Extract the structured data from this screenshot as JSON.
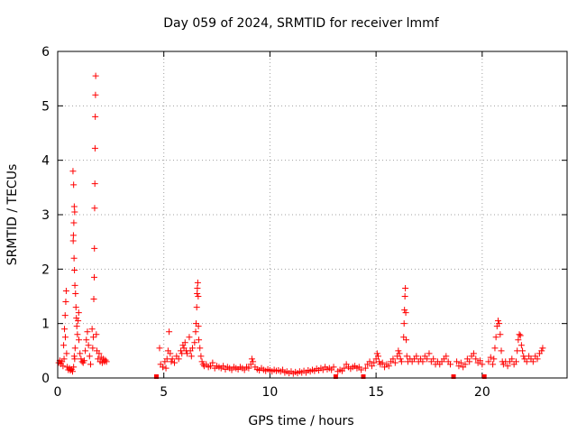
{
  "chart_data": {
    "type": "scatter",
    "title": "Day 059 of 2024, SRMTID for receiver lmmf",
    "xlabel": "GPS time / hours",
    "ylabel": "SRMTID / TECUs",
    "xlim": [
      0,
      24
    ],
    "ylim": [
      0,
      6
    ],
    "xticks": [
      0,
      5,
      10,
      15,
      20
    ],
    "yticks": [
      0,
      1,
      2,
      3,
      4,
      5,
      6
    ],
    "grid": true,
    "marker": "+",
    "color": "#ff0000",
    "gap_markers": [
      4.65,
      13.1,
      14.4,
      18.65,
      20.1
    ],
    "series": [
      {
        "name": "SRMTID",
        "points": [
          [
            0.05,
            0.28
          ],
          [
            0.1,
            0.32
          ],
          [
            0.15,
            0.26
          ],
          [
            0.2,
            0.3
          ],
          [
            0.25,
            0.22
          ],
          [
            0.3,
            0.35
          ],
          [
            0.28,
            0.6
          ],
          [
            0.32,
            0.9
          ],
          [
            0.35,
            1.15
          ],
          [
            0.38,
            1.4
          ],
          [
            0.4,
            1.6
          ],
          [
            0.36,
            0.75
          ],
          [
            0.42,
            0.45
          ],
          [
            0.45,
            0.2
          ],
          [
            0.5,
            0.15
          ],
          [
            0.55,
            0.18
          ],
          [
            0.6,
            0.14
          ],
          [
            0.65,
            0.16
          ],
          [
            0.7,
            0.12
          ],
          [
            0.75,
            0.2
          ],
          [
            0.78,
            0.4
          ],
          [
            0.8,
            0.35
          ],
          [
            0.82,
            0.55
          ],
          [
            0.72,
            3.8
          ],
          [
            0.75,
            3.55
          ],
          [
            0.78,
            3.15
          ],
          [
            0.8,
            3.05
          ],
          [
            0.76,
            2.85
          ],
          [
            0.74,
            2.62
          ],
          [
            0.73,
            2.52
          ],
          [
            0.77,
            2.2
          ],
          [
            0.79,
            1.98
          ],
          [
            0.81,
            1.7
          ],
          [
            0.84,
            1.55
          ],
          [
            0.86,
            1.3
          ],
          [
            0.88,
            1.1
          ],
          [
            0.9,
            0.95
          ],
          [
            0.93,
            0.8
          ],
          [
            0.96,
            1.05
          ],
          [
            0.99,
            1.2
          ],
          [
            1.0,
            0.7
          ],
          [
            1.05,
            0.45
          ],
          [
            1.1,
            0.35
          ],
          [
            1.15,
            0.3
          ],
          [
            1.2,
            0.28
          ],
          [
            1.25,
            0.32
          ],
          [
            1.3,
            0.5
          ],
          [
            1.35,
            0.7
          ],
          [
            1.4,
            0.85
          ],
          [
            1.45,
            0.6
          ],
          [
            1.5,
            0.4
          ],
          [
            1.55,
            0.25
          ],
          [
            1.62,
            0.9
          ],
          [
            1.65,
            0.55
          ],
          [
            1.68,
            0.75
          ],
          [
            1.7,
            1.45
          ],
          [
            1.72,
            1.85
          ],
          [
            1.73,
            2.38
          ],
          [
            1.74,
            3.12
          ],
          [
            1.75,
            3.57
          ],
          [
            1.76,
            4.22
          ],
          [
            1.77,
            4.8
          ],
          [
            1.78,
            5.2
          ],
          [
            1.79,
            5.55
          ],
          [
            1.82,
            0.8
          ],
          [
            1.85,
            0.5
          ],
          [
            1.9,
            0.35
          ],
          [
            1.95,
            0.45
          ],
          [
            2.0,
            0.3
          ],
          [
            2.05,
            0.38
          ],
          [
            2.1,
            0.28
          ],
          [
            2.15,
            0.35
          ],
          [
            2.2,
            0.3
          ],
          [
            2.25,
            0.33
          ],
          [
            2.3,
            0.3
          ],
          [
            4.8,
            0.55
          ],
          [
            4.85,
            0.25
          ],
          [
            4.95,
            0.2
          ],
          [
            5.05,
            0.3
          ],
          [
            5.1,
            0.18
          ],
          [
            5.15,
            0.35
          ],
          [
            5.2,
            0.5
          ],
          [
            5.25,
            0.85
          ],
          [
            5.3,
            0.45
          ],
          [
            5.35,
            0.3
          ],
          [
            5.4,
            0.35
          ],
          [
            5.5,
            0.28
          ],
          [
            5.6,
            0.4
          ],
          [
            5.7,
            0.35
          ],
          [
            5.8,
            0.5
          ],
          [
            5.85,
            0.45
          ],
          [
            5.9,
            0.6
          ],
          [
            5.95,
            0.55
          ],
          [
            6.0,
            0.65
          ],
          [
            6.05,
            0.5
          ],
          [
            6.1,
            0.45
          ],
          [
            6.2,
            0.75
          ],
          [
            6.25,
            0.5
          ],
          [
            6.3,
            0.4
          ],
          [
            6.35,
            0.55
          ],
          [
            6.45,
            0.65
          ],
          [
            6.5,
            0.85
          ],
          [
            6.52,
            1.0
          ],
          [
            6.55,
            1.3
          ],
          [
            6.57,
            1.55
          ],
          [
            6.58,
            1.65
          ],
          [
            6.6,
            1.75
          ],
          [
            6.62,
            1.5
          ],
          [
            6.63,
            0.95
          ],
          [
            6.65,
            0.7
          ],
          [
            6.7,
            0.55
          ],
          [
            6.75,
            0.4
          ],
          [
            6.8,
            0.3
          ],
          [
            6.85,
            0.25
          ],
          [
            6.9,
            0.22
          ],
          [
            7.0,
            0.25
          ],
          [
            7.1,
            0.2
          ],
          [
            7.2,
            0.22
          ],
          [
            7.3,
            0.28
          ],
          [
            7.4,
            0.18
          ],
          [
            7.5,
            0.22
          ],
          [
            7.6,
            0.2
          ],
          [
            7.7,
            0.18
          ],
          [
            7.8,
            0.22
          ],
          [
            7.9,
            0.16
          ],
          [
            8.0,
            0.2
          ],
          [
            8.1,
            0.18
          ],
          [
            8.2,
            0.15
          ],
          [
            8.3,
            0.2
          ],
          [
            8.4,
            0.18
          ],
          [
            8.5,
            0.16
          ],
          [
            8.6,
            0.2
          ],
          [
            8.7,
            0.18
          ],
          [
            8.8,
            0.15
          ],
          [
            8.9,
            0.2
          ],
          [
            9.0,
            0.18
          ],
          [
            9.1,
            0.25
          ],
          [
            9.15,
            0.35
          ],
          [
            9.2,
            0.3
          ],
          [
            9.3,
            0.2
          ],
          [
            9.4,
            0.16
          ],
          [
            9.5,
            0.14
          ],
          [
            9.6,
            0.18
          ],
          [
            9.7,
            0.15
          ],
          [
            9.8,
            0.13
          ],
          [
            9.9,
            0.16
          ],
          [
            10.0,
            0.14
          ],
          [
            10.1,
            0.12
          ],
          [
            10.2,
            0.15
          ],
          [
            10.3,
            0.13
          ],
          [
            10.4,
            0.14
          ],
          [
            10.5,
            0.12
          ],
          [
            10.6,
            0.15
          ],
          [
            10.7,
            0.1
          ],
          [
            10.8,
            0.12
          ],
          [
            10.9,
            0.09
          ],
          [
            11.0,
            0.12
          ],
          [
            11.1,
            0.08
          ],
          [
            11.2,
            0.11
          ],
          [
            11.3,
            0.09
          ],
          [
            11.4,
            0.12
          ],
          [
            11.5,
            0.1
          ],
          [
            11.6,
            0.13
          ],
          [
            11.7,
            0.1
          ],
          [
            11.8,
            0.14
          ],
          [
            11.9,
            0.12
          ],
          [
            12.0,
            0.15
          ],
          [
            12.1,
            0.13
          ],
          [
            12.2,
            0.17
          ],
          [
            12.3,
            0.14
          ],
          [
            12.4,
            0.18
          ],
          [
            12.5,
            0.15
          ],
          [
            12.6,
            0.2
          ],
          [
            12.7,
            0.16
          ],
          [
            12.8,
            0.18
          ],
          [
            12.9,
            0.15
          ],
          [
            13.0,
            0.2
          ],
          [
            13.2,
            0.12
          ],
          [
            13.3,
            0.15
          ],
          [
            13.4,
            0.13
          ],
          [
            13.5,
            0.18
          ],
          [
            13.6,
            0.25
          ],
          [
            13.7,
            0.2
          ],
          [
            13.8,
            0.17
          ],
          [
            13.9,
            0.2
          ],
          [
            14.0,
            0.22
          ],
          [
            14.1,
            0.18
          ],
          [
            14.2,
            0.2
          ],
          [
            14.3,
            0.15
          ],
          [
            14.5,
            0.18
          ],
          [
            14.6,
            0.25
          ],
          [
            14.7,
            0.3
          ],
          [
            14.8,
            0.22
          ],
          [
            14.9,
            0.28
          ],
          [
            15.0,
            0.35
          ],
          [
            15.05,
            0.45
          ],
          [
            15.1,
            0.4
          ],
          [
            15.15,
            0.3
          ],
          [
            15.2,
            0.25
          ],
          [
            15.3,
            0.28
          ],
          [
            15.4,
            0.2
          ],
          [
            15.5,
            0.25
          ],
          [
            15.6,
            0.22
          ],
          [
            15.7,
            0.3
          ],
          [
            15.8,
            0.35
          ],
          [
            15.9,
            0.28
          ],
          [
            16.0,
            0.4
          ],
          [
            16.05,
            0.5
          ],
          [
            16.1,
            0.45
          ],
          [
            16.15,
            0.35
          ],
          [
            16.2,
            0.3
          ],
          [
            16.3,
            0.75
          ],
          [
            16.32,
            1.0
          ],
          [
            16.34,
            1.25
          ],
          [
            16.36,
            1.5
          ],
          [
            16.38,
            1.65
          ],
          [
            16.4,
            1.2
          ],
          [
            16.42,
            0.7
          ],
          [
            16.45,
            0.4
          ],
          [
            16.5,
            0.3
          ],
          [
            16.6,
            0.35
          ],
          [
            16.7,
            0.3
          ],
          [
            16.8,
            0.35
          ],
          [
            16.9,
            0.4
          ],
          [
            17.0,
            0.3
          ],
          [
            17.1,
            0.35
          ],
          [
            17.2,
            0.3
          ],
          [
            17.3,
            0.4
          ],
          [
            17.4,
            0.35
          ],
          [
            17.5,
            0.45
          ],
          [
            17.6,
            0.3
          ],
          [
            17.7,
            0.35
          ],
          [
            17.8,
            0.25
          ],
          [
            17.9,
            0.3
          ],
          [
            18.0,
            0.25
          ],
          [
            18.1,
            0.3
          ],
          [
            18.2,
            0.35
          ],
          [
            18.3,
            0.4
          ],
          [
            18.4,
            0.3
          ],
          [
            18.5,
            0.25
          ],
          [
            18.8,
            0.3
          ],
          [
            18.9,
            0.22
          ],
          [
            19.0,
            0.28
          ],
          [
            19.1,
            0.2
          ],
          [
            19.2,
            0.25
          ],
          [
            19.3,
            0.35
          ],
          [
            19.4,
            0.3
          ],
          [
            19.5,
            0.4
          ],
          [
            19.6,
            0.45
          ],
          [
            19.7,
            0.35
          ],
          [
            19.8,
            0.28
          ],
          [
            19.9,
            0.32
          ],
          [
            20.0,
            0.25
          ],
          [
            20.3,
            0.3
          ],
          [
            20.4,
            0.38
          ],
          [
            20.5,
            0.25
          ],
          [
            20.55,
            0.35
          ],
          [
            20.6,
            0.55
          ],
          [
            20.65,
            0.75
          ],
          [
            20.7,
            0.95
          ],
          [
            20.75,
            1.05
          ],
          [
            20.8,
            1.0
          ],
          [
            20.85,
            0.8
          ],
          [
            20.9,
            0.5
          ],
          [
            20.95,
            0.3
          ],
          [
            21.0,
            0.25
          ],
          [
            21.1,
            0.3
          ],
          [
            21.2,
            0.22
          ],
          [
            21.3,
            0.3
          ],
          [
            21.4,
            0.35
          ],
          [
            21.5,
            0.25
          ],
          [
            21.6,
            0.3
          ],
          [
            21.65,
            0.5
          ],
          [
            21.7,
            0.7
          ],
          [
            21.75,
            0.8
          ],
          [
            21.8,
            0.78
          ],
          [
            21.85,
            0.6
          ],
          [
            21.9,
            0.5
          ],
          [
            21.95,
            0.4
          ],
          [
            22.0,
            0.35
          ],
          [
            22.1,
            0.3
          ],
          [
            22.2,
            0.4
          ],
          [
            22.3,
            0.35
          ],
          [
            22.4,
            0.3
          ],
          [
            22.5,
            0.4
          ],
          [
            22.6,
            0.35
          ],
          [
            22.7,
            0.45
          ],
          [
            22.8,
            0.5
          ],
          [
            22.85,
            0.55
          ]
        ]
      }
    ]
  }
}
